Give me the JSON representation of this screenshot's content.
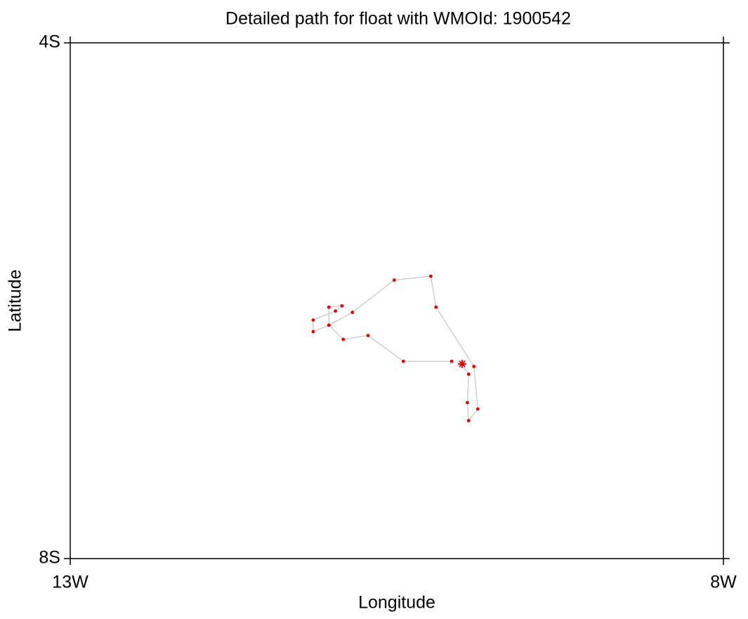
{
  "chart_data": {
    "type": "track",
    "title": "Detailed path for float with WMOId: 1900542",
    "xlabel": "Longitude",
    "ylabel": "Latitude",
    "x": [
      -10.08,
      -10.45,
      -10.72,
      -10.91,
      -11.02,
      -11.14,
      -11.14,
      -10.97,
      -10.92,
      -11.02,
      -11.02,
      -10.84,
      -10.52,
      -10.24,
      -10.2,
      -9.91,
      -9.88,
      -9.95,
      -9.96,
      -9.95,
      -10.0
    ],
    "values": [
      -6.47,
      -6.47,
      -6.27,
      -6.3,
      -6.19,
      -6.24,
      -6.15,
      -6.08,
      -6.04,
      -6.05,
      -6.19,
      -6.09,
      -5.84,
      -5.81,
      -6.05,
      -6.51,
      -6.84,
      -6.93,
      -6.79,
      -6.57,
      -6.49
    ],
    "color": "#e00000",
    "line_color": "#c8c8c8",
    "last_point_marker": "star",
    "xlim": [
      -13,
      -8
    ],
    "ylim": [
      -8,
      -4
    ],
    "xticks": [
      {
        "value": -13,
        "label": "13W"
      },
      {
        "value": -8,
        "label": "8W"
      }
    ],
    "yticks": [
      {
        "value": -4,
        "label": "4S"
      },
      {
        "value": -8,
        "label": "8S"
      }
    ]
  }
}
